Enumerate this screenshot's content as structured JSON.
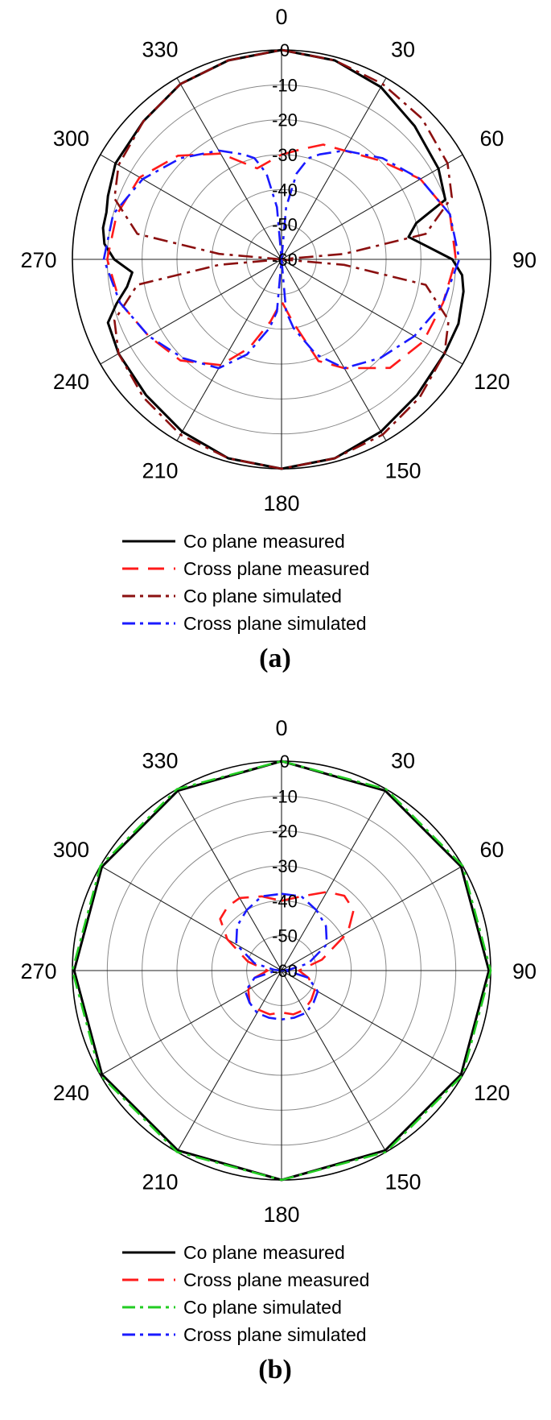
{
  "chart_data": [
    {
      "type": "polar-line",
      "panel_label": "(a)",
      "angle_labels": [
        "0",
        "30",
        "60",
        "90",
        "120",
        "150",
        "180",
        "210",
        "240",
        "270",
        "300",
        "330"
      ],
      "radial_ticks": [
        "0",
        "-10",
        "-20",
        "-30",
        "-40",
        "-50",
        "-60"
      ],
      "rlim": [
        -60,
        0
      ],
      "grid": true,
      "legend_position": "below",
      "series": [
        {
          "name": "Co plane measured",
          "color": "#000000",
          "style": "solid",
          "theta": [
            0,
            15,
            30,
            45,
            60,
            70,
            75,
            80,
            85,
            90,
            95,
            100,
            110,
            120,
            135,
            150,
            165,
            180,
            195,
            210,
            225,
            240,
            250,
            255,
            260,
            265,
            270,
            275,
            280,
            285,
            290,
            300,
            315,
            330,
            345,
            360
          ],
          "r": [
            0,
            -1,
            -3,
            -6,
            -8,
            -10,
            -20,
            -23,
            -18,
            -11,
            -8,
            -7,
            -6,
            -6,
            -5,
            -3,
            -1,
            0,
            -1,
            -3,
            -5,
            -6,
            -7,
            -11,
            -15,
            -17,
            -12,
            -9,
            -8,
            -8,
            -7,
            -5,
            -4,
            -2,
            -1,
            0
          ]
        },
        {
          "name": "Cross plane measured",
          "color": "#ff1a1a",
          "style": "dash",
          "theta": [
            0,
            10,
            20,
            30,
            45,
            60,
            75,
            90,
            105,
            120,
            135,
            150,
            160,
            170,
            180,
            190,
            200,
            210,
            225,
            240,
            255,
            270,
            285,
            300,
            315,
            330,
            345,
            360
          ],
          "r": [
            -30,
            -28,
            -25,
            -24,
            -20,
            -14,
            -10,
            -10,
            -12,
            -13,
            -16,
            -24,
            -29,
            -42,
            -48,
            -42,
            -33,
            -25,
            -19,
            -16,
            -12,
            -10,
            -11,
            -13,
            -18,
            -25,
            -33,
            -30
          ]
        },
        {
          "name": "Co plane simulated",
          "color": "#8b1010",
          "style": "dashdot",
          "theta": [
            0,
            15,
            30,
            45,
            60,
            70,
            80,
            85,
            90,
            95,
            100,
            110,
            120,
            135,
            150,
            165,
            180,
            195,
            210,
            225,
            240,
            250,
            260,
            265,
            270,
            275,
            280,
            290,
            300,
            315,
            330,
            345,
            360
          ],
          "r": [
            0,
            -1,
            -2,
            -3,
            -5,
            -8,
            -18,
            -42,
            -60,
            -42,
            -18,
            -9,
            -6,
            -4,
            -2,
            -1,
            0,
            -1,
            -2,
            -4,
            -6,
            -9,
            -18,
            -42,
            -60,
            -42,
            -18,
            -9,
            -6,
            -4,
            -2,
            -1,
            0
          ]
        },
        {
          "name": "Cross plane simulated",
          "color": "#1a1aff",
          "style": "dashdot",
          "theta": [
            0,
            5,
            10,
            15,
            20,
            30,
            45,
            60,
            75,
            90,
            105,
            120,
            135,
            150,
            160,
            170,
            175,
            180,
            185,
            190,
            200,
            210,
            225,
            240,
            255,
            270,
            285,
            300,
            315,
            330,
            340,
            345,
            350,
            355,
            360
          ],
          "r": [
            -60,
            -45,
            -35,
            -30,
            -28,
            -24,
            -19,
            -14,
            -10,
            -9,
            -12,
            -16,
            -20,
            -24,
            -31,
            -40,
            -45,
            -60,
            -45,
            -40,
            -31,
            -24,
            -20,
            -16,
            -12,
            -9,
            -10,
            -14,
            -19,
            -24,
            -28,
            -30,
            -35,
            -45,
            -60
          ]
        }
      ],
      "legend": [
        {
          "label": "Co plane measured",
          "color": "#000000",
          "style": "solid"
        },
        {
          "label": "Cross plane measured",
          "color": "#ff1a1a",
          "style": "dash"
        },
        {
          "label": "Co plane simulated",
          "color": "#8b1010",
          "style": "dashdot"
        },
        {
          "label": "Cross plane simulated",
          "color": "#1a1aff",
          "style": "dashdot"
        }
      ]
    },
    {
      "type": "polar-line",
      "panel_label": "(b)",
      "angle_labels": [
        "0",
        "30",
        "60",
        "90",
        "120",
        "150",
        "180",
        "210",
        "240",
        "270",
        "300",
        "330"
      ],
      "radial_ticks": [
        "0",
        "-10",
        "-20",
        "-30",
        "-40",
        "-50",
        "-60"
      ],
      "rlim": [
        -60,
        0
      ],
      "grid": true,
      "legend_position": "below",
      "series": [
        {
          "name": "Co plane measured",
          "color": "#000000",
          "style": "solid",
          "theta": [
            0,
            30,
            60,
            90,
            120,
            150,
            180,
            210,
            240,
            270,
            300,
            330,
            360
          ],
          "r": [
            0,
            -0.5,
            -0.5,
            -0.5,
            -0.5,
            -0.5,
            0,
            -0.5,
            -0.5,
            -0.5,
            -0.5,
            -0.5,
            0
          ]
        },
        {
          "name": "Cross plane measured",
          "color": "#ff1a1a",
          "style": "dash",
          "theta": [
            0,
            15,
            30,
            40,
            50,
            60,
            75,
            90,
            105,
            120,
            135,
            150,
            165,
            180,
            195,
            210,
            225,
            240,
            255,
            270,
            285,
            300,
            310,
            320,
            330,
            345,
            360
          ],
          "r": [
            -40,
            -38,
            -34,
            -32,
            -33,
            -38,
            -48,
            -55,
            -52,
            -49,
            -48,
            -47,
            -47,
            -48,
            -47,
            -47,
            -47,
            -49,
            -52,
            -56,
            -50,
            -42,
            -37,
            -36,
            -36,
            -38,
            -40
          ]
        },
        {
          "name": "Co plane simulated",
          "color": "#22cc22",
          "style": "dashdot",
          "theta": [
            0,
            30,
            60,
            90,
            120,
            150,
            180,
            210,
            240,
            270,
            300,
            330,
            360
          ],
          "r": [
            0,
            0,
            0,
            0,
            0,
            0,
            0,
            0,
            0,
            0,
            0,
            0,
            0
          ]
        },
        {
          "name": "Cross plane simulated",
          "color": "#1a1aff",
          "style": "dashdot",
          "theta": [
            0,
            15,
            30,
            45,
            60,
            75,
            85,
            90,
            95,
            105,
            120,
            135,
            150,
            165,
            180,
            195,
            210,
            225,
            240,
            255,
            265,
            270,
            275,
            285,
            300,
            315,
            330,
            345,
            360
          ],
          "r": [
            -38,
            -38,
            -40,
            -42,
            -45,
            -52,
            -58,
            -60,
            -58,
            -52,
            -48,
            -47,
            -46,
            -46,
            -46,
            -46,
            -46,
            -47,
            -48,
            -52,
            -58,
            -60,
            -58,
            -52,
            -45,
            -42,
            -40,
            -38,
            -38
          ]
        }
      ],
      "legend": [
        {
          "label": "Co plane measured",
          "color": "#000000",
          "style": "solid"
        },
        {
          "label": "Cross plane measured",
          "color": "#ff1a1a",
          "style": "dash"
        },
        {
          "label": "Co plane simulated",
          "color": "#22cc22",
          "style": "dashdot"
        },
        {
          "label": "Cross plane simulated",
          "color": "#1a1aff",
          "style": "dashdot"
        }
      ]
    }
  ]
}
